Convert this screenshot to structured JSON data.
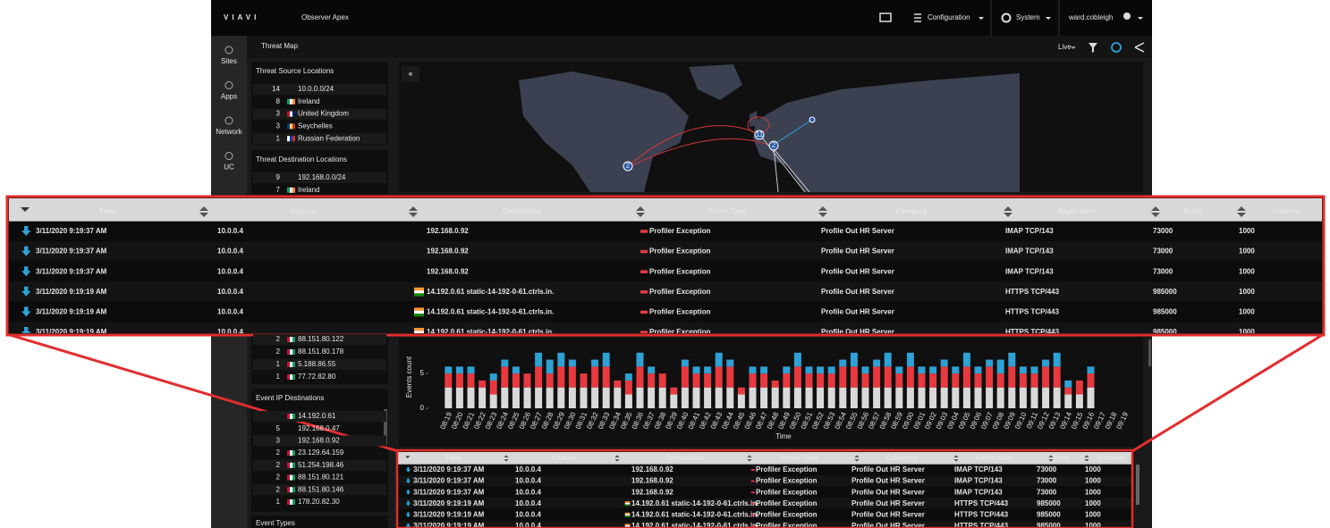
{
  "header": {
    "brand": "VIAVI",
    "product": "Observer Apex",
    "configuration": "Configuration",
    "system": "System",
    "user": "ward.cobleigh"
  },
  "nav": [
    "Sites",
    "Apps",
    "Network",
    "UC"
  ],
  "view": {
    "title": "Threat Map",
    "mode": "Live"
  },
  "threat_source_locations": {
    "title": "Threat Source Locations",
    "rows": [
      {
        "count": 14,
        "label": "10.0.0.0/24"
      },
      {
        "count": 8,
        "label": "Ireland"
      },
      {
        "count": 3,
        "label": "United Kingdom"
      },
      {
        "count": 3,
        "label": "Seychelles"
      },
      {
        "count": 1,
        "label": "Russian Federation"
      }
    ]
  },
  "threat_destination_locations": {
    "title": "Threat Destination Locations",
    "rows": [
      {
        "count": 9,
        "label": "192.168.0.0/24"
      },
      {
        "count": 7,
        "label": "Ireland"
      }
    ]
  },
  "event_ip_sources": {
    "rows": [
      {
        "count": 2,
        "label": "88.151.80.122"
      },
      {
        "count": 2,
        "label": "88.151.80.178"
      },
      {
        "count": 1,
        "label": "5.188.86.55"
      },
      {
        "count": 1,
        "label": "77.72.82.80"
      }
    ]
  },
  "event_ip_destinations": {
    "title": "Event IP Destinations",
    "rows": [
      {
        "label": "14.192.0.61"
      },
      {
        "count": 5,
        "label": "192.168.0.47"
      },
      {
        "count": 3,
        "label": "192.168.0.92"
      },
      {
        "count": 2,
        "label": "23.129.64.159"
      },
      {
        "count": 2,
        "label": "51.254.198.46"
      },
      {
        "count": 2,
        "label": "88.151.80.121"
      },
      {
        "count": 2,
        "label": "88.151.80.146"
      },
      {
        "count": 1,
        "label": "178.20.82.30"
      }
    ]
  },
  "event_types": {
    "title": "Event Types"
  },
  "map": {
    "markers": [
      2,
      11,
      2
    ]
  },
  "chart_data": {
    "type": "stacked-bar",
    "y_label": "Events count",
    "x_label": "Time",
    "categories": [
      "08:19",
      "08:20",
      "08:21",
      "08:22",
      "08:23",
      "08:24",
      "08:25",
      "08:26",
      "08:27",
      "08:28",
      "08:29",
      "08:30",
      "08:31",
      "08:32",
      "08:33",
      "08:34",
      "08:35",
      "08:36",
      "08:37",
      "08:38",
      "08:39",
      "08:40",
      "08:41",
      "08:42",
      "08:43",
      "08:44",
      "08:45",
      "08:46",
      "08:47",
      "08:48",
      "08:49",
      "08:50",
      "08:51",
      "08:52",
      "08:53",
      "08:54",
      "08:55",
      "08:56",
      "08:57",
      "08:58",
      "08:59",
      "09:00",
      "09:01",
      "09:02",
      "09:03",
      "09:04",
      "09:05",
      "09:06",
      "09:07",
      "09:08",
      "09:09",
      "09:10",
      "09:11",
      "09:12",
      "09:13",
      "09:14",
      "09:15",
      "09:16",
      "09:17",
      "09:18",
      "09:19"
    ],
    "series": [
      {
        "color": "#d9d9d9",
        "values": [
          3,
          3,
          3,
          3,
          2,
          3,
          3,
          3,
          3,
          3,
          3,
          3,
          3,
          3,
          3,
          3,
          2,
          3,
          3,
          3,
          2,
          3,
          3,
          3,
          3,
          3,
          2,
          3,
          3,
          3,
          3,
          3,
          3,
          3,
          3,
          3,
          3,
          3,
          3,
          3,
          3,
          3,
          3,
          3,
          3,
          3,
          3,
          3,
          3,
          3,
          3,
          3,
          3,
          3,
          3,
          2,
          2,
          3,
          0,
          0,
          0
        ]
      },
      {
        "color": "#e8393f",
        "values": [
          2,
          2,
          2,
          1,
          2,
          3,
          2,
          2,
          3,
          2,
          3,
          3,
          2,
          3,
          3,
          1,
          2,
          3,
          2,
          2,
          1,
          3,
          2,
          2,
          3,
          3,
          1,
          2,
          2,
          1,
          2,
          3,
          2,
          2,
          2,
          3,
          3,
          2,
          3,
          3,
          2,
          3,
          2,
          2,
          3,
          2,
          3,
          2,
          3,
          2,
          3,
          2,
          2,
          3,
          3,
          1,
          2,
          2,
          0,
          0,
          0
        ]
      },
      {
        "color": "#2ea1d5",
        "values": [
          1,
          1,
          1,
          0,
          1,
          1,
          1,
          0,
          2,
          2,
          2,
          1,
          0,
          1,
          2,
          0,
          1,
          2,
          1,
          0,
          0,
          1,
          1,
          1,
          2,
          1,
          0,
          1,
          1,
          0,
          1,
          2,
          1,
          1,
          1,
          1,
          2,
          1,
          1,
          2,
          1,
          2,
          1,
          1,
          1,
          1,
          2,
          1,
          1,
          2,
          2,
          1,
          1,
          1,
          2,
          1,
          0,
          1,
          0,
          0,
          0
        ]
      }
    ],
    "ylim": [
      0,
      9
    ],
    "yticks": [
      0,
      5
    ]
  },
  "table": {
    "columns": [
      "Time",
      "Source",
      "Destination",
      "Event Type",
      "Category",
      "Application",
      "Bytes",
      "Packets"
    ],
    "rows": [
      [
        "3/11/2020 9:19:37 AM",
        "10.0.0.4",
        "192.168.0.92",
        "Profiler Exception",
        "Profile Out HR Server",
        "IMAP TCP/143",
        73000,
        1000
      ],
      [
        "3/11/2020 9:19:37 AM",
        "10.0.0.4",
        "192.168.0.92",
        "Profiler Exception",
        "Profile Out HR Server",
        "IMAP TCP/143",
        73000,
        1000
      ],
      [
        "3/11/2020 9:19:37 AM",
        "10.0.0.4",
        "192.168.0.92",
        "Profiler Exception",
        "Profile Out HR Server",
        "IMAP TCP/143",
        73000,
        1000
      ],
      [
        "3/11/2020 9:19:19 AM",
        "10.0.0.4",
        "14.192.0.61 static-14-192-0-61.ctrls.in.",
        "Profiler Exception",
        "Profile Out HR Server",
        "HTTPS TCP/443",
        985000,
        1000
      ],
      [
        "3/11/2020 9:19:19 AM",
        "10.0.0.4",
        "14.192.0.61 static-14-192-0-61.ctrls.in.",
        "Profiler Exception",
        "Profile Out HR Server",
        "HTTPS TCP/443",
        985000,
        1000
      ],
      [
        "3/11/2020 9:19:19 AM",
        "10.0.0.4",
        "14.192.0.61 static-14-192-0-61.ctrls.in.",
        "Profiler Exception",
        "Profile Out HR Server",
        "HTTPS TCP/443",
        985000,
        1000
      ]
    ]
  }
}
